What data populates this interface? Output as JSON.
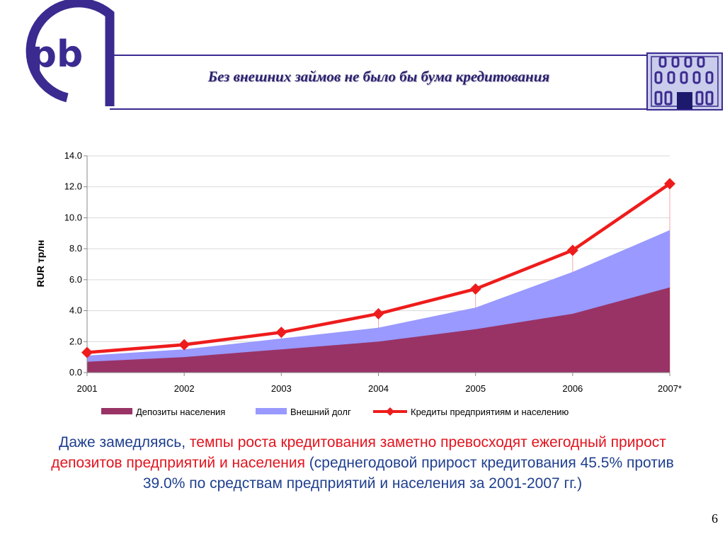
{
  "header": {
    "logo_text": "pb",
    "title": "Без внешних займов не было бы бума кредитования"
  },
  "colors": {
    "brand": "#3b2a90",
    "deposits": "#993366",
    "foreign_debt": "#9999ff",
    "credits": "#ee1c1c",
    "caption_blue": "#1f3f8f",
    "caption_red": "#e2141e"
  },
  "icons": {
    "logo": "pb-logo",
    "building": "building-icon"
  },
  "chart_data": {
    "type": "area",
    "x": [
      "2001",
      "2002",
      "2003",
      "2004",
      "2005",
      "2006",
      "2007*"
    ],
    "ylabel": "RUR трлн",
    "ylim": [
      0,
      14
    ],
    "yticks": [
      "0.0",
      "2.0",
      "4.0",
      "6.0",
      "8.0",
      "10.0",
      "12.0",
      "14.0"
    ],
    "grid": true,
    "legend_position": "bottom",
    "stacked": true,
    "series": [
      {
        "name": "Депозиты населения",
        "type": "area",
        "values": [
          0.7,
          1.0,
          1.5,
          2.0,
          2.8,
          3.8,
          5.5
        ]
      },
      {
        "name": "Внешний долг",
        "type": "area",
        "values": [
          0.4,
          0.5,
          0.7,
          0.9,
          1.4,
          2.7,
          3.7
        ]
      },
      {
        "name": "Кредиты предприятиям и населению",
        "type": "line",
        "values": [
          1.3,
          1.8,
          2.6,
          3.8,
          5.4,
          7.9,
          12.2
        ]
      }
    ]
  },
  "caption": {
    "part1": "Даже замедляясь, ",
    "part2": "темпы роста кредитования заметно превосходят ежегодный прирост депозитов предприятий и населения",
    "part3": " (среднегодовой прирост кредитования 45.5% против 39.0% по средствам предприятий и населения за 2001-2007 гг.)"
  },
  "page_number": "6"
}
